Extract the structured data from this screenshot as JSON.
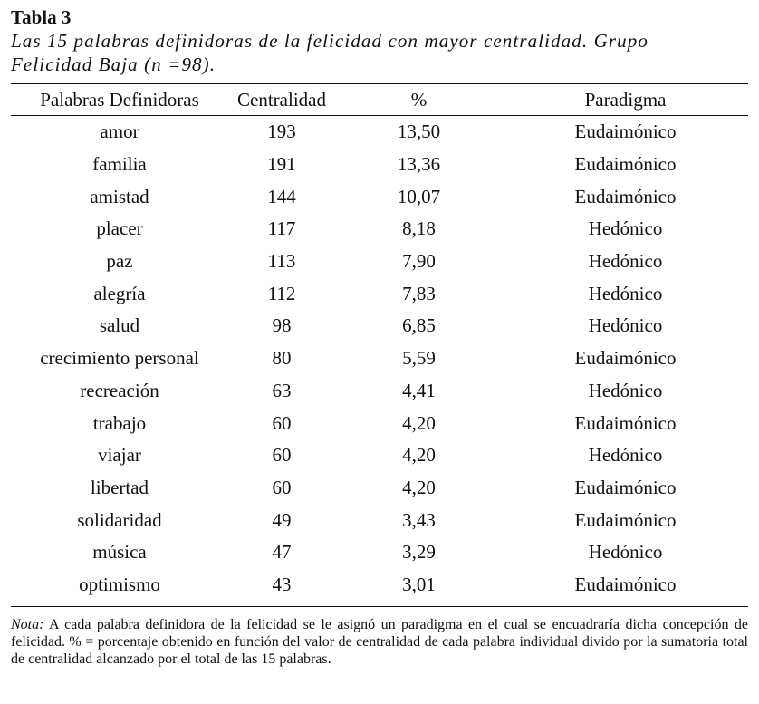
{
  "table_label": "Tabla 3",
  "caption_line1": "Las 15 palabras definidoras de la felicidad con mayor centralidad. Grupo",
  "caption_line2": "Felicidad Baja (n =98).",
  "columns": [
    "Palabras Definidoras",
    "Centralidad",
    "%",
    "Paradigma"
  ],
  "rows": [
    {
      "word": "amor",
      "centralidad": "193",
      "pct": "13,50",
      "paradigma": "Eudaimónico"
    },
    {
      "word": "familia",
      "centralidad": "191",
      "pct": "13,36",
      "paradigma": "Eudaimónico"
    },
    {
      "word": "amistad",
      "centralidad": "144",
      "pct": "10,07",
      "paradigma": "Eudaimónico"
    },
    {
      "word": "placer",
      "centralidad": "117",
      "pct": "8,18",
      "paradigma": "Hedónico"
    },
    {
      "word": "paz",
      "centralidad": "113",
      "pct": "7,90",
      "paradigma": "Hedónico"
    },
    {
      "word": "alegría",
      "centralidad": "112",
      "pct": "7,83",
      "paradigma": "Hedónico"
    },
    {
      "word": "salud",
      "centralidad": "98",
      "pct": "6,85",
      "paradigma": "Hedónico"
    },
    {
      "word": "crecimiento personal",
      "centralidad": "80",
      "pct": "5,59",
      "paradigma": "Eudaimónico"
    },
    {
      "word": "recreación",
      "centralidad": "63",
      "pct": "4,41",
      "paradigma": "Hedónico"
    },
    {
      "word": "trabajo",
      "centralidad": "60",
      "pct": "4,20",
      "paradigma": "Eudaimónico"
    },
    {
      "word": "viajar",
      "centralidad": "60",
      "pct": "4,20",
      "paradigma": "Hedónico"
    },
    {
      "word": "libertad",
      "centralidad": "60",
      "pct": "4,20",
      "paradigma": "Eudaimónico"
    },
    {
      "word": "solidaridad",
      "centralidad": "49",
      "pct": "3,43",
      "paradigma": "Eudaimónico"
    },
    {
      "word": "música",
      "centralidad": "47",
      "pct": "3,29",
      "paradigma": "Hedónico"
    },
    {
      "word": "optimismo",
      "centralidad": "43",
      "pct": "3,01",
      "paradigma": "Eudaimónico"
    }
  ],
  "note_label": "Nota:",
  "note_text": "A cada palabra definidora de la felicidad se le asignó un paradigma en el cual se encuadraría dicha concepción de felicidad. % = porcentaje obtenido en función del valor de centralidad de cada palabra individual divido por la sumatoria total de centralidad alcanzado por el total de las 15 palabras."
}
